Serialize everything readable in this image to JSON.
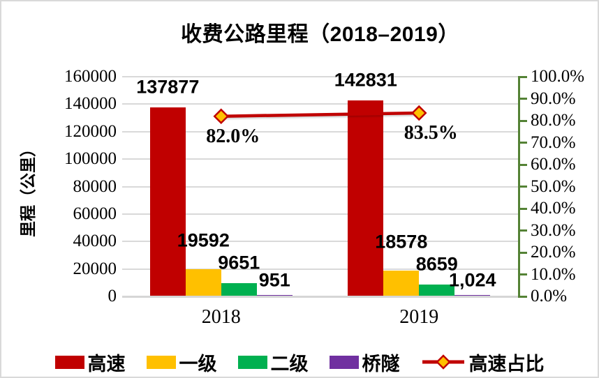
{
  "title": "收费公路里程（2018–2019）",
  "chart_data": {
    "type": "bar",
    "subtype": "grouped-bars-with-line-overlay",
    "categories": [
      "2018",
      "2019"
    ],
    "series": [
      {
        "name": "高速",
        "values": [
          137877,
          142831
        ],
        "labels": [
          "137877",
          "142831"
        ],
        "color": "#C00000"
      },
      {
        "name": "一级",
        "values": [
          19592,
          18578
        ],
        "labels": [
          "19592",
          "18578"
        ],
        "color": "#FFC000"
      },
      {
        "name": "二级",
        "values": [
          9651,
          8659
        ],
        "labels": [
          "9651",
          "8659"
        ],
        "color": "#00B050"
      },
      {
        "name": "桥隧",
        "values": [
          951,
          1024
        ],
        "labels": [
          "951",
          "1,024"
        ],
        "color": "#7030A0"
      }
    ],
    "line_series": {
      "name": "高速占比",
      "values": [
        0.82,
        0.835
      ],
      "labels": [
        "82.0%",
        "83.5%"
      ],
      "line_color": "#C00000",
      "marker_fill": "#FFC000",
      "marker_stroke": "#C00000"
    },
    "title": "收费公路里程（2018–2019）",
    "xlabel": "",
    "y_left": {
      "label": "里程（公里）",
      "min": 0,
      "max": 160000,
      "tick_step": 20000,
      "ticks": [
        "0",
        "20000",
        "40000",
        "60000",
        "80000",
        "100000",
        "120000",
        "140000",
        "160000"
      ]
    },
    "y_right": {
      "label": "",
      "min": 0,
      "max": 1.0,
      "tick_step": 0.1,
      "ticks": [
        "0.0%",
        "10.0%",
        "20.0%",
        "30.0%",
        "40.0%",
        "50.0%",
        "60.0%",
        "70.0%",
        "80.0%",
        "90.0%",
        "100.0%"
      ],
      "axis_color": "#548235"
    },
    "grid": "on",
    "grid_color": "#D9D9D9",
    "legend_position": "bottom",
    "legend": [
      "高速",
      "一级",
      "二级",
      "桥隧",
      "高速占比"
    ]
  }
}
